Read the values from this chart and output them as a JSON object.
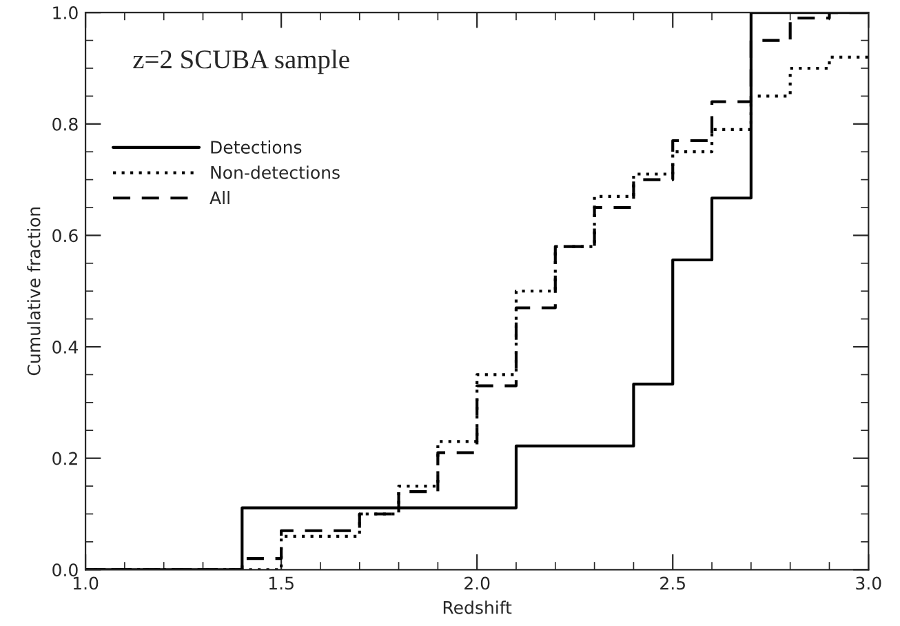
{
  "chart_data": {
    "type": "step",
    "title": "z=2 SCUBA sample",
    "xlabel": "Redshift",
    "ylabel": "Cumulative fraction",
    "x": [
      1.0,
      1.1,
      1.2,
      1.3,
      1.4,
      1.5,
      1.6,
      1.7,
      1.8,
      1.9,
      2.0,
      2.1,
      2.2,
      2.3,
      2.4,
      2.5,
      2.6,
      2.7,
      2.8,
      2.9,
      3.0
    ],
    "series": [
      {
        "name": "Detections",
        "color": "#000000",
        "line_style": "solid",
        "values": [
          0,
          0,
          0,
          0,
          0.111,
          0.111,
          0.111,
          0.111,
          0.111,
          0.111,
          0.111,
          0.222,
          0.222,
          0.222,
          0.333,
          0.556,
          0.667,
          1.0,
          1.0,
          1.0,
          1.0
        ]
      },
      {
        "name": "Non-detections",
        "color": "#000000",
        "line_style": "dotted",
        "values": [
          0,
          0,
          0,
          0,
          0,
          0.06,
          0.06,
          0.1,
          0.15,
          0.23,
          0.35,
          0.5,
          0.58,
          0.67,
          0.71,
          0.75,
          0.79,
          0.85,
          0.9,
          0.92,
          0.92
        ]
      },
      {
        "name": "All",
        "color": "#000000",
        "line_style": "dashed",
        "values": [
          0,
          0,
          0,
          0,
          0.02,
          0.07,
          0.07,
          0.1,
          0.14,
          0.21,
          0.33,
          0.47,
          0.58,
          0.65,
          0.7,
          0.77,
          0.84,
          0.95,
          0.99,
          1.0,
          1.0
        ]
      }
    ],
    "xlim": [
      1.0,
      3.0
    ],
    "xticks": [
      {
        "value": 1.0,
        "label": "1.0"
      },
      1.5,
      {
        "value": 2.0,
        "label": "2.0"
      },
      2.5,
      {
        "value": 3.0,
        "label": "3.0"
      }
    ],
    "ylim": [
      0,
      1.0
    ],
    "yticks": [
      {
        "value": 0,
        "label": "0.0"
      },
      0.2,
      0.4,
      0.6,
      0.8,
      {
        "value": 1.0,
        "label": "1.0"
      }
    ],
    "legend": "top left",
    "grid": false
  }
}
